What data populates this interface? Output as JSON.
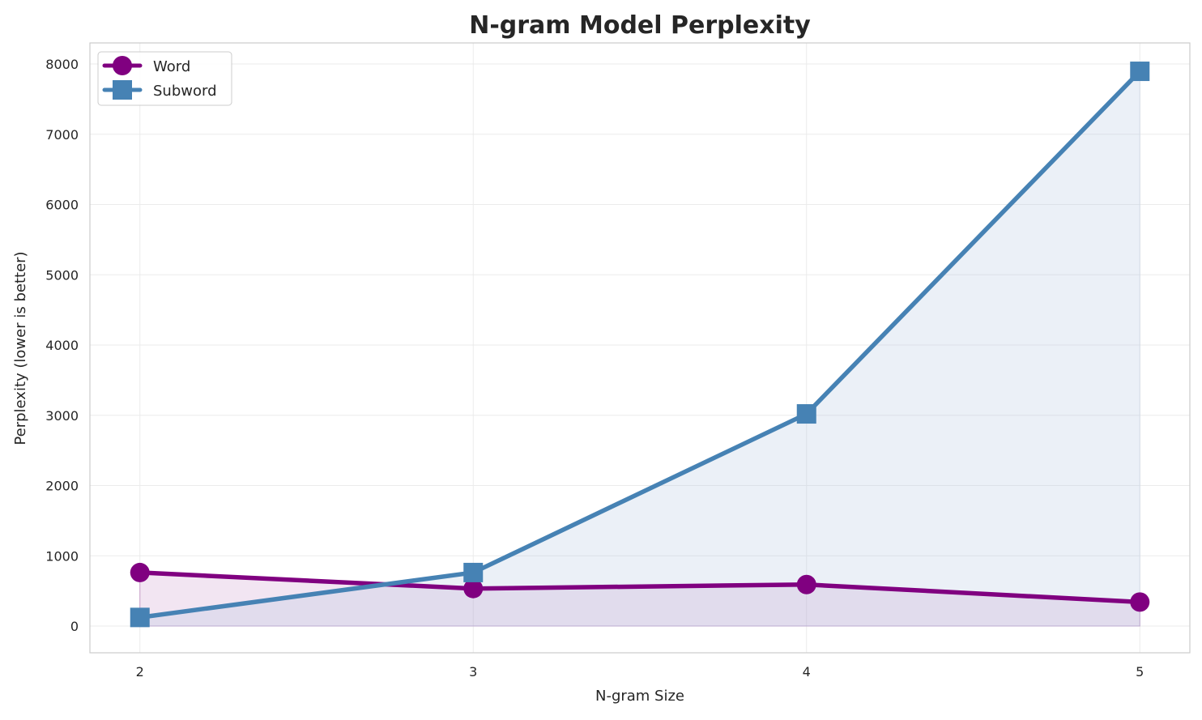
{
  "chart_data": {
    "type": "line",
    "title": "N-gram Model Perplexity",
    "xlabel": "N-gram Size",
    "ylabel": "Perplexity (lower is better)",
    "x": [
      2,
      3,
      4,
      5
    ],
    "xticks": [
      "2",
      "3",
      "4",
      "5"
    ],
    "yticks": [
      0,
      1000,
      2000,
      3000,
      4000,
      5000,
      6000,
      7000,
      8000
    ],
    "xlim": [
      1.85,
      5.15
    ],
    "ylim": [
      -380,
      8300
    ],
    "grid": true,
    "legend": "top-left",
    "series": [
      {
        "name": "Word",
        "values": [
          762,
          534,
          591,
          342
        ],
        "color": "#800080",
        "marker": "circle",
        "fill": "#800080"
      },
      {
        "name": "Subword",
        "values": [
          123,
          762,
          3020,
          7896
        ],
        "color": "#4682b4",
        "marker": "square",
        "fill": "#b0c4de"
      }
    ]
  }
}
